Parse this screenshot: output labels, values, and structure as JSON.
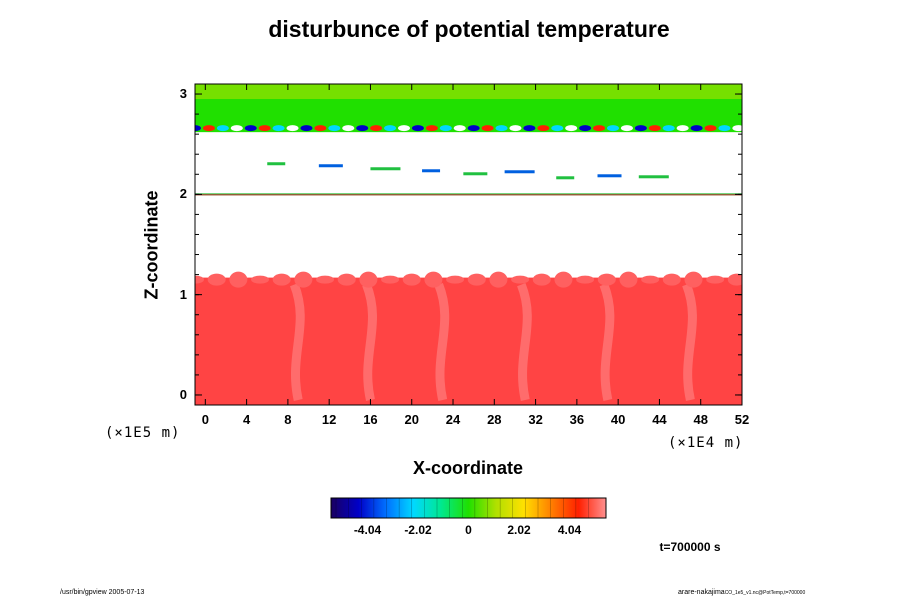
{
  "chart_data": {
    "type": "heatmap",
    "title": "disturbunce of potential temperature",
    "xlabel": "X-coordinate",
    "ylabel": "Z-coordinate",
    "x_scale_label": "(×1E4 m)",
    "y_scale_label": "(×1E5 m)",
    "xlim": [
      -1,
      52
    ],
    "ylim": [
      -0.1,
      3.1
    ],
    "x_ticks": [
      "0",
      "4",
      "8",
      "12",
      "16",
      "20",
      "24",
      "28",
      "32",
      "36",
      "40",
      "44",
      "48",
      "52"
    ],
    "y_ticks": [
      "0",
      "1",
      "2",
      "3"
    ],
    "colorbar": {
      "range": [
        -5.5,
        5.5
      ],
      "ticks": [
        "-4.04",
        "-2.02",
        "0",
        "2.02",
        "4.04"
      ],
      "tick_values": [
        -4.04,
        -2.02,
        0,
        2.02,
        4.04
      ],
      "colors": [
        "#1a0060",
        "#0000c8",
        "#0070ff",
        "#00d8ff",
        "#00e890",
        "#20e000",
        "#b0e000",
        "#ffe000",
        "#ff8000",
        "#ff2000",
        "#ff9090"
      ]
    },
    "regions": [
      {
        "name": "lower layer",
        "z_range": [
          -0.1,
          1.17
        ],
        "value": 4.0,
        "color": "#ff4444"
      },
      {
        "name": "gap",
        "z_range": [
          1.17,
          1.99
        ],
        "value": null
      },
      {
        "name": "thin layer",
        "z_range": [
          1.99,
          2.01
        ],
        "value": 0
      },
      {
        "name": "sparse patches",
        "z_range": [
          2.2,
          2.35
        ],
        "value": -3.0
      },
      {
        "name": "upper layer",
        "z_range": [
          2.62,
          3.1
        ],
        "value": 1.0,
        "color": "#20e000"
      }
    ],
    "time_label": "t=700000 s"
  },
  "footer": {
    "left": "/usr/bin/gpview 2005-07-13",
    "right_main": "arare-nakajima",
    "right_small": "CO_1e5_v1.nc@PotTemp,t=700000"
  }
}
